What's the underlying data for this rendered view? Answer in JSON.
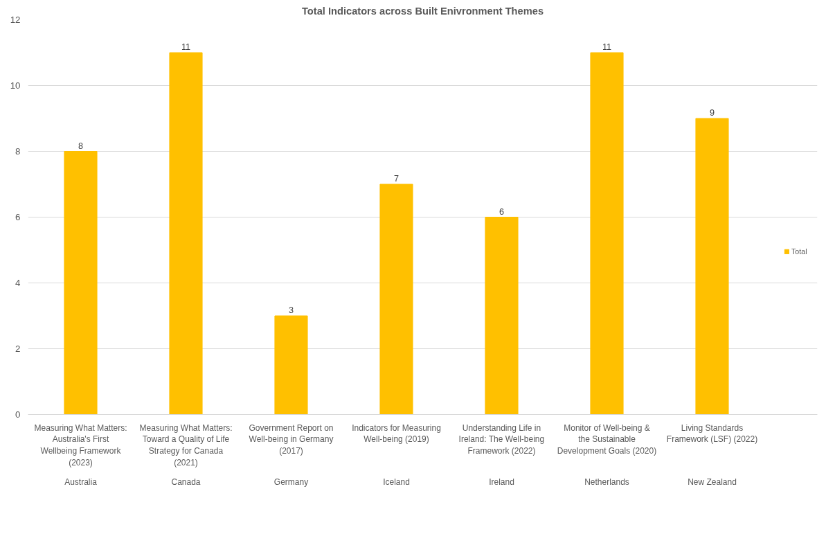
{
  "chart_data": {
    "type": "bar",
    "title": "Total Indicators across Built Enivronment Themes",
    "categories": [
      "Measuring What Matters: Australia's First Wellbeing Framework (2023)",
      "Measuring What Matters: Toward a Quality of Life Strategy for Canada (2021)",
      "Government Report on Well-being in Germany (2017)",
      "Indicators for Measuring Well-being (2019)",
      "Understanding Life in Ireland: The Well-being Framework (2022)",
      "Monitor of Well-being & the Sustainable Development Goals (2020)",
      "Living Standards Framework (LSF) (2022)"
    ],
    "series": [
      {
        "name": "Total",
        "color": "#ffc000",
        "values": [
          8,
          11,
          3,
          7,
          6,
          11,
          9
        ]
      }
    ],
    "annotations": [
      "Australia",
      "Canada",
      "Germany",
      "Iceland",
      "Ireland",
      "Netherlands",
      "New Zealand"
    ],
    "ylim": [
      0,
      12
    ],
    "yticks": [
      0,
      2,
      4,
      6,
      8,
      10,
      12
    ],
    "grid": "y",
    "legend": "right",
    "data_labels": true
  }
}
